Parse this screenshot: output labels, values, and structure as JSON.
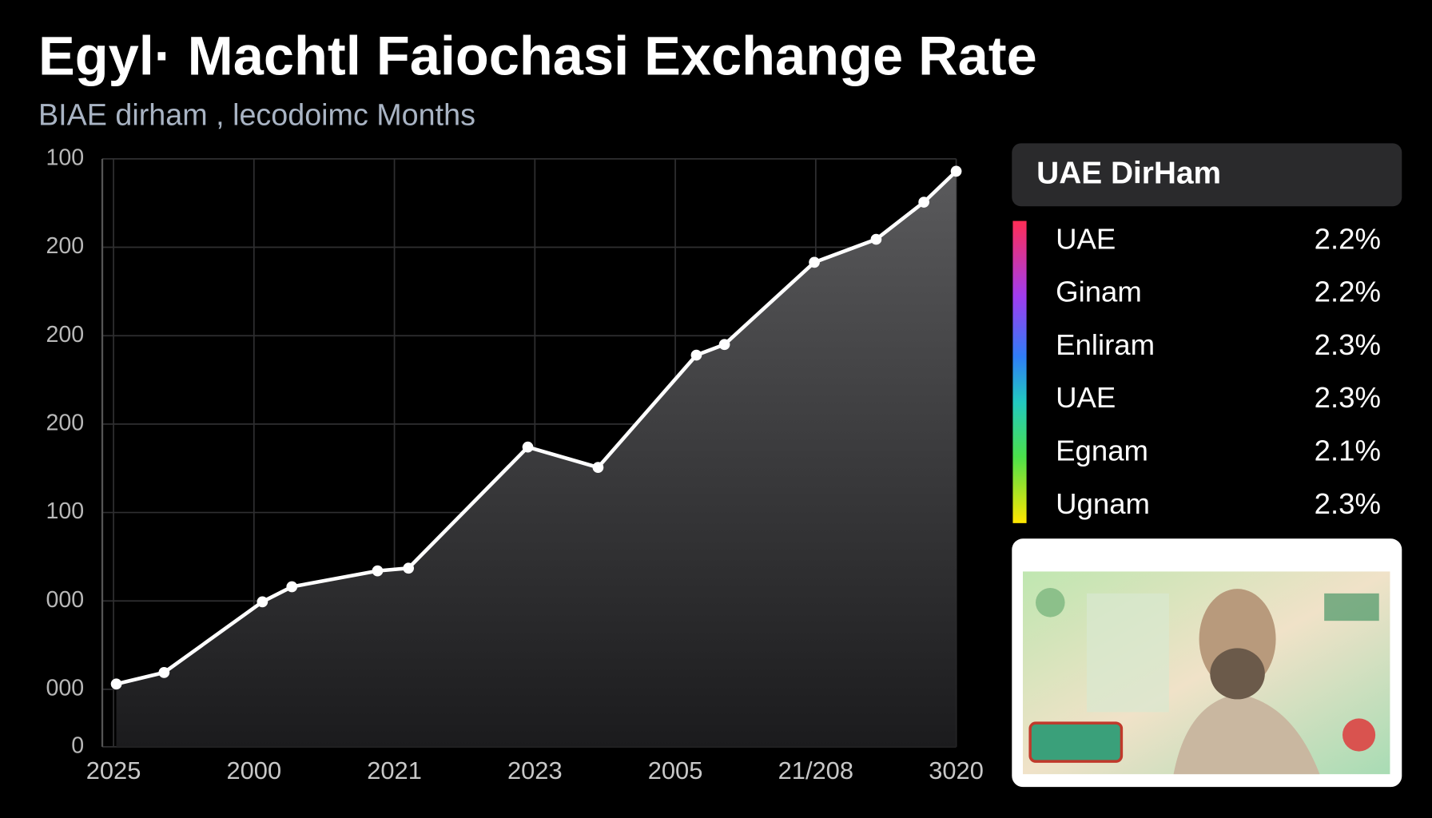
{
  "chart_data": {
    "type": "area",
    "title": "Egyl· Machtl Faiochasi Exchange Rate",
    "subtitle": "BIAE dirham , lecodoimc Months",
    "x": [
      0.02,
      0.36,
      1.06,
      1.27,
      1.88,
      2.1,
      2.95,
      3.45,
      4.15,
      4.35,
      4.99,
      5.43,
      5.77,
      6.0
    ],
    "values": [
      0.71,
      0.84,
      1.64,
      1.81,
      1.99,
      2.02,
      3.39,
      3.16,
      4.43,
      4.55,
      5.48,
      5.74,
      6.16,
      6.51
    ],
    "color": "#ffffff",
    "xlim": [
      -0.08,
      6
    ],
    "xticks": [
      {
        "value": 0,
        "label": "2025"
      },
      {
        "value": 1,
        "label": "2000"
      },
      {
        "value": 2,
        "label": "2021"
      },
      {
        "value": 3,
        "label": "2023"
      },
      {
        "value": 4,
        "label": "2005"
      },
      {
        "value": 5,
        "label": "21/208"
      },
      {
        "value": 6,
        "label": "3020"
      }
    ],
    "ylim": [
      0,
      6.65
    ],
    "yticks": [
      0,
      {
        "value": 0.65,
        "label": "000"
      },
      {
        "value": 1.65,
        "label": "000"
      },
      {
        "value": 2.65,
        "label": "100"
      },
      {
        "value": 3.65,
        "label": "200"
      },
      {
        "value": 4.65,
        "label": "200"
      },
      {
        "value": 5.65,
        "label": "200"
      },
      {
        "value": 6.65,
        "label": "100"
      }
    ],
    "grid": true
  },
  "legend_panel": {
    "title": "UAE DirHam",
    "rows": [
      {
        "name": "UAE",
        "value": "2.2%"
      },
      {
        "name": "Ginam",
        "value": "2.2%"
      },
      {
        "name": "Enliram",
        "value": "2.3%"
      },
      {
        "name": "UAE",
        "value": "2.3%"
      },
      {
        "name": "Egnam",
        "value": "2.1%"
      },
      {
        "name": "Ugnam",
        "value": "2.3%"
      }
    ]
  }
}
